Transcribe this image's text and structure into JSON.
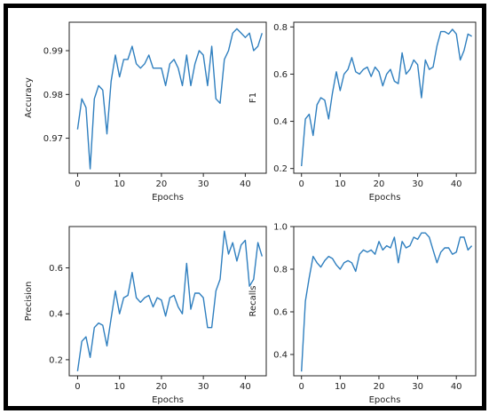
{
  "figure": {
    "line_color": "#2f7fbf"
  },
  "chart_data": [
    {
      "type": "line",
      "xlabel": "Epochs",
      "ylabel": "Accuracy",
      "xlim": [
        -2,
        45
      ],
      "ylim": [
        0.962,
        0.9965
      ],
      "xticks": [
        0,
        10,
        20,
        30,
        40
      ],
      "yticks": [
        0.97,
        0.98,
        0.99
      ],
      "ytick_labels": [
        "0.97",
        "0.98",
        "0.99"
      ],
      "grid": false,
      "x": [
        0,
        1,
        2,
        3,
        4,
        5,
        6,
        7,
        8,
        9,
        10,
        11,
        12,
        13,
        14,
        15,
        16,
        17,
        18,
        19,
        20,
        21,
        22,
        23,
        24,
        25,
        26,
        27,
        28,
        29,
        30,
        31,
        32,
        33,
        34,
        35,
        36,
        37,
        38,
        39,
        40,
        41,
        42,
        43,
        44
      ],
      "values": [
        0.972,
        0.979,
        0.977,
        0.963,
        0.979,
        0.982,
        0.981,
        0.971,
        0.983,
        0.989,
        0.984,
        0.988,
        0.988,
        0.991,
        0.987,
        0.986,
        0.987,
        0.989,
        0.986,
        0.986,
        0.986,
        0.982,
        0.987,
        0.988,
        0.986,
        0.982,
        0.989,
        0.982,
        0.987,
        0.99,
        0.989,
        0.982,
        0.991,
        0.979,
        0.978,
        0.988,
        0.99,
        0.994,
        0.995,
        0.994,
        0.993,
        0.994,
        0.99,
        0.991,
        0.994
      ]
    },
    {
      "type": "line",
      "xlabel": "Epochs",
      "ylabel": "F1",
      "xlim": [
        -2,
        45
      ],
      "ylim": [
        0.18,
        0.82
      ],
      "xticks": [
        0,
        10,
        20,
        30,
        40
      ],
      "yticks": [
        0.2,
        0.4,
        0.6,
        0.8
      ],
      "ytick_labels": [
        "0.2",
        "0.4",
        "0.6",
        "0.8"
      ],
      "grid": false,
      "x": [
        0,
        1,
        2,
        3,
        4,
        5,
        6,
        7,
        8,
        9,
        10,
        11,
        12,
        13,
        14,
        15,
        16,
        17,
        18,
        19,
        20,
        21,
        22,
        23,
        24,
        25,
        26,
        27,
        28,
        29,
        30,
        31,
        32,
        33,
        34,
        35,
        36,
        37,
        38,
        39,
        40,
        41,
        42,
        43,
        44
      ],
      "values": [
        0.21,
        0.41,
        0.43,
        0.34,
        0.47,
        0.5,
        0.49,
        0.41,
        0.52,
        0.61,
        0.53,
        0.6,
        0.62,
        0.67,
        0.61,
        0.6,
        0.62,
        0.63,
        0.59,
        0.63,
        0.61,
        0.55,
        0.6,
        0.62,
        0.57,
        0.56,
        0.69,
        0.6,
        0.62,
        0.66,
        0.64,
        0.5,
        0.66,
        0.62,
        0.63,
        0.72,
        0.78,
        0.78,
        0.77,
        0.79,
        0.77,
        0.66,
        0.7,
        0.77,
        0.76
      ]
    },
    {
      "type": "line",
      "xlabel": "Epochs",
      "ylabel": "Precision",
      "xlim": [
        -2,
        45
      ],
      "ylim": [
        0.13,
        0.78
      ],
      "xticks": [
        0,
        10,
        20,
        30,
        40
      ],
      "yticks": [
        0.2,
        0.4,
        0.6
      ],
      "ytick_labels": [
        "0.2",
        "0.4",
        "0.6"
      ],
      "grid": false,
      "x": [
        0,
        1,
        2,
        3,
        4,
        5,
        6,
        7,
        8,
        9,
        10,
        11,
        12,
        13,
        14,
        15,
        16,
        17,
        18,
        19,
        20,
        21,
        22,
        23,
        24,
        25,
        26,
        27,
        28,
        29,
        30,
        31,
        32,
        33,
        34,
        35,
        36,
        37,
        38,
        39,
        40,
        41,
        42,
        43,
        44
      ],
      "values": [
        0.15,
        0.28,
        0.3,
        0.21,
        0.34,
        0.36,
        0.35,
        0.26,
        0.38,
        0.5,
        0.4,
        0.47,
        0.48,
        0.58,
        0.47,
        0.45,
        0.47,
        0.48,
        0.43,
        0.47,
        0.46,
        0.39,
        0.47,
        0.48,
        0.43,
        0.4,
        0.62,
        0.42,
        0.49,
        0.49,
        0.47,
        0.34,
        0.34,
        0.5,
        0.55,
        0.76,
        0.66,
        0.71,
        0.63,
        0.7,
        0.72,
        0.52,
        0.55,
        0.71,
        0.65
      ]
    },
    {
      "type": "line",
      "xlabel": "Epochs",
      "ylabel": "Recalls",
      "xlim": [
        -2,
        45
      ],
      "ylim": [
        0.3,
        1.0
      ],
      "xticks": [
        0,
        10,
        20,
        30,
        40
      ],
      "yticks": [
        0.4,
        0.6,
        0.8,
        1.0
      ],
      "ytick_labels": [
        "0.4",
        "0.6",
        "0.8",
        "1.0"
      ],
      "grid": false,
      "x": [
        0,
        1,
        2,
        3,
        4,
        5,
        6,
        7,
        8,
        9,
        10,
        11,
        12,
        13,
        14,
        15,
        16,
        17,
        18,
        19,
        20,
        21,
        22,
        23,
        24,
        25,
        26,
        27,
        28,
        29,
        30,
        31,
        32,
        33,
        34,
        35,
        36,
        37,
        38,
        39,
        40,
        41,
        42,
        43,
        44
      ],
      "values": [
        0.32,
        0.65,
        0.76,
        0.86,
        0.83,
        0.81,
        0.84,
        0.86,
        0.85,
        0.82,
        0.8,
        0.83,
        0.84,
        0.83,
        0.79,
        0.87,
        0.89,
        0.88,
        0.89,
        0.87,
        0.93,
        0.89,
        0.91,
        0.9,
        0.95,
        0.83,
        0.93,
        0.9,
        0.91,
        0.95,
        0.94,
        0.97,
        0.97,
        0.95,
        0.89,
        0.83,
        0.88,
        0.9,
        0.9,
        0.87,
        0.88,
        0.95,
        0.95,
        0.89,
        0.91
      ]
    }
  ]
}
